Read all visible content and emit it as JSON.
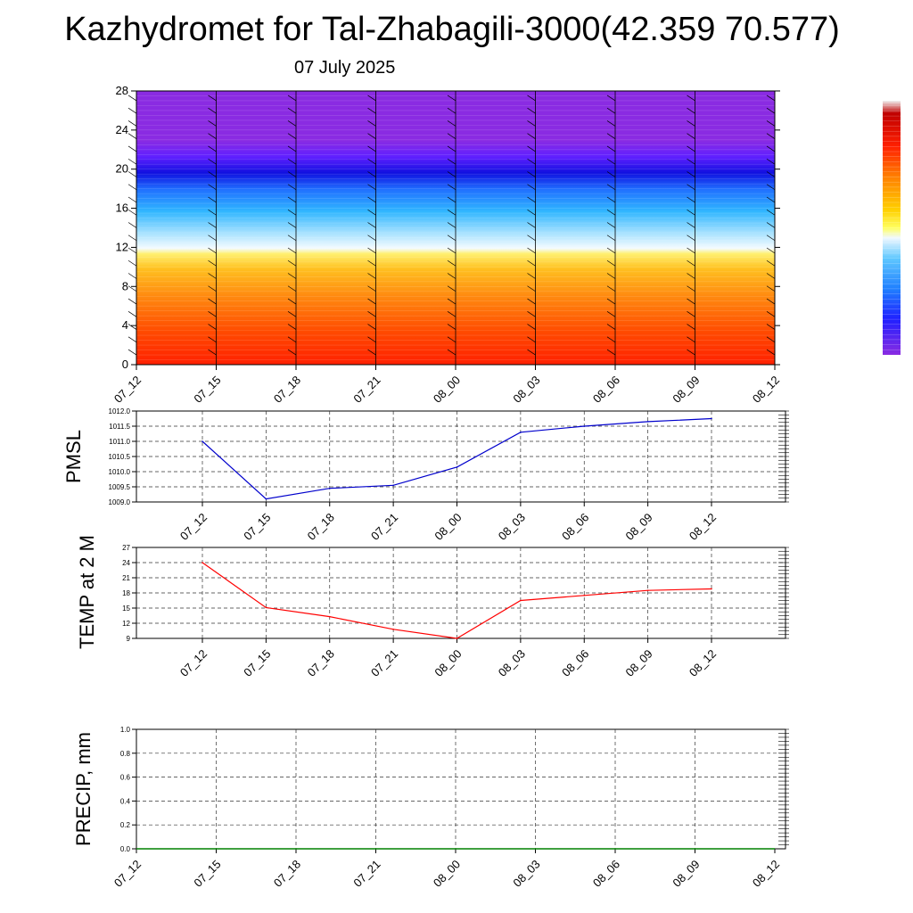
{
  "header": {
    "title": "Kazhydromet for Tal-Zhabagili-3000(42.359 70.577)",
    "date": "07 July 2025"
  },
  "chart_data": [
    {
      "type": "heatmap",
      "title": "",
      "xlabel": "",
      "ylabel": "",
      "x_ticks": [
        "07_12",
        "07_15",
        "07_18",
        "07_21",
        "08_00",
        "08_03",
        "08_06",
        "08_09",
        "08_12"
      ],
      "y_ticks": [
        0,
        4,
        8,
        12,
        16,
        20,
        24,
        28
      ],
      "ylim": [
        0,
        28
      ],
      "colorbar": [
        "#c8c8c8",
        "#b00000",
        "#ff0000",
        "#ff6a00",
        "#ffb000",
        "#ffff40",
        "#e8f4ff",
        "#40c0ff",
        "#2060ff",
        "#2000ff",
        "#8a2be2"
      ],
      "colors": {
        "warm": "#ff3000",
        "cold": "#8a2be2",
        "mid": "#ffffff"
      }
    },
    {
      "type": "line",
      "ylabel": "PMSL",
      "categories": [
        "07_12",
        "07_15",
        "07_18",
        "07_21",
        "08_00",
        "08_03",
        "08_06",
        "08_09",
        "08_12"
      ],
      "values": [
        1011.0,
        1009.1,
        1009.45,
        1009.55,
        1010.15,
        1011.3,
        1011.5,
        1011.65,
        1011.75
      ],
      "y_ticks": [
        "1012.0",
        "1011.5",
        "1011.0",
        "1010.5",
        "1010.0",
        "1009.5",
        "1009.0"
      ],
      "ylim": [
        1009.0,
        1012.0
      ],
      "color": "#0000cc",
      "grid": true
    },
    {
      "type": "line",
      "ylabel": "TEMP at 2 M",
      "categories": [
        "07_12",
        "07_15",
        "07_18",
        "07_21",
        "08_00",
        "08_03",
        "08_06",
        "08_09",
        "08_12"
      ],
      "values": [
        24.0,
        15.1,
        13.3,
        10.8,
        9.0,
        16.5,
        17.5,
        18.5,
        18.8
      ],
      "y_ticks": [
        "27",
        "24",
        "21",
        "18",
        "15",
        "12",
        "9"
      ],
      "ylim": [
        9,
        27
      ],
      "color": "#ff0000",
      "grid": true
    },
    {
      "type": "line",
      "ylabel": "PRECIP, mm",
      "categories": [
        "07_12",
        "07_15",
        "07_18",
        "07_21",
        "08_00",
        "08_03",
        "08_06",
        "08_09",
        "08_12"
      ],
      "values": [
        0,
        0,
        0,
        0,
        0,
        0,
        0,
        0,
        0
      ],
      "y_ticks": [
        "1.0",
        "0.8",
        "0.6",
        "0.4",
        "0.2",
        "0.0"
      ],
      "ylim": [
        0,
        1.0
      ],
      "color": "#008000",
      "grid": true
    }
  ]
}
